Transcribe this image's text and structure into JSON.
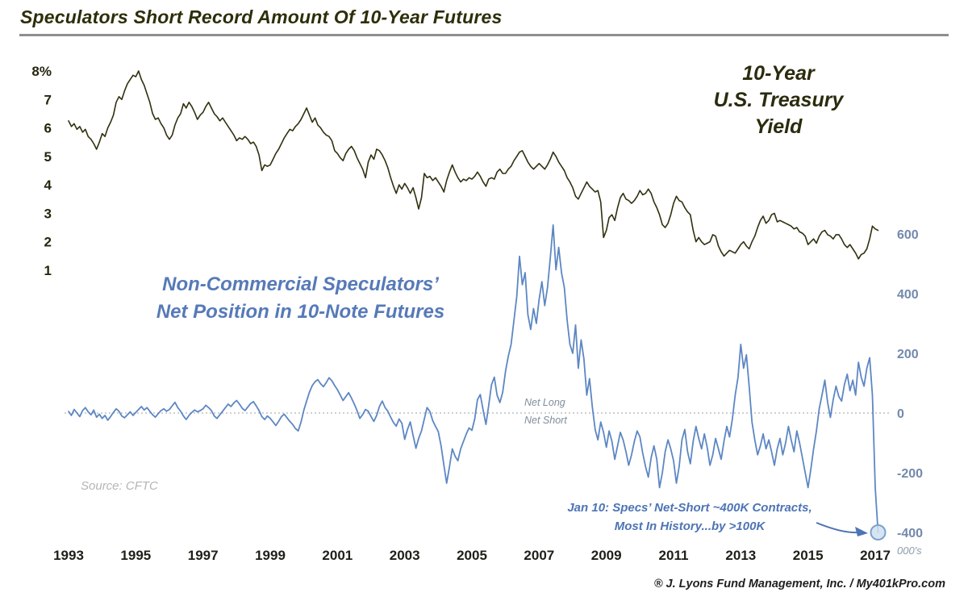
{
  "title": "Speculators Short Record Amount Of 10-Year Futures",
  "footer": "® J. Lyons Fund Management, Inc. / My401kPro.com",
  "colors": {
    "yield_line": "#30300f",
    "net_line": "#5d87c3",
    "blue_text": "#4d74b5",
    "dark_text": "#2e2e0a",
    "axis_right": "#7289ac",
    "gray_rule": "#8f8f8f",
    "marker_fill": "#cfe0ef",
    "marker_stroke": "#7aa3cc"
  },
  "chart_data": {
    "type": "line",
    "title": "Speculators Short Record Amount Of 10-Year Futures",
    "xlabel": "",
    "grid": "zero-line-only",
    "x_axis": {
      "range": [
        1993,
        2017.12
      ],
      "ticks": [
        "1993",
        "1995",
        "1997",
        "1999",
        "2001",
        "2003",
        "2005",
        "2007",
        "2009",
        "2011",
        "2013",
        "2015",
        "2017"
      ]
    },
    "left_axis": {
      "name": "10-Year U.S. Treasury Yield (%)",
      "range": [
        1,
        8
      ],
      "ticks": [
        "8%",
        "7",
        "6",
        "5",
        "4",
        "3",
        "2",
        "1"
      ],
      "tick_values": [
        8,
        7,
        6,
        5,
        4,
        3,
        2,
        1
      ]
    },
    "right_axis": {
      "name": "Net Position (thousands of contracts)",
      "range": [
        -400,
        600
      ],
      "ticks": [
        "600",
        "400",
        "200",
        "0",
        "-200",
        "-400"
      ],
      "tick_values": [
        600,
        400,
        200,
        0,
        -200,
        -400
      ],
      "unit": "000's"
    },
    "annotations": {
      "yield_label": "10-Year\nU.S. Treasury\nYield",
      "net_label": "Non-Commercial Speculators’\nNet Position in 10-Note Futures",
      "net_long": "Net Long",
      "net_short": "Net Short",
      "source": "Source: CFTC",
      "callout": "Jan 10: Specs’ Net-Short ~400K Contracts,\nMost In History...by >100K"
    },
    "series": [
      {
        "id": "treasury-yield",
        "name": "10-Year U.S. Treasury Yield",
        "axis": "left",
        "color": "#30300f",
        "width": 1.6,
        "start": 1993.0,
        "step": 0.083333,
        "values": [
          6.25,
          6.05,
          6.15,
          5.95,
          6.05,
          5.85,
          5.95,
          5.7,
          5.6,
          5.45,
          5.25,
          5.5,
          5.8,
          5.7,
          6.0,
          6.2,
          6.45,
          6.9,
          7.1,
          7.0,
          7.3,
          7.55,
          7.7,
          7.85,
          7.8,
          8.0,
          7.7,
          7.5,
          7.2,
          6.9,
          6.5,
          6.3,
          6.35,
          6.15,
          6.0,
          5.75,
          5.6,
          5.75,
          6.1,
          6.35,
          6.5,
          6.85,
          6.7,
          6.9,
          6.75,
          6.55,
          6.3,
          6.45,
          6.55,
          6.75,
          6.9,
          6.7,
          6.5,
          6.4,
          6.25,
          6.35,
          6.2,
          6.05,
          5.9,
          5.75,
          5.55,
          5.65,
          5.6,
          5.7,
          5.6,
          5.45,
          5.5,
          5.35,
          5.05,
          4.5,
          4.7,
          4.65,
          4.7,
          4.9,
          5.1,
          5.25,
          5.45,
          5.65,
          5.8,
          5.95,
          5.9,
          6.05,
          6.15,
          6.3,
          6.5,
          6.7,
          6.45,
          6.2,
          6.35,
          6.1,
          6.0,
          5.85,
          5.75,
          5.7,
          5.55,
          5.2,
          5.1,
          4.95,
          4.85,
          5.1,
          5.25,
          5.35,
          5.2,
          4.95,
          4.75,
          4.55,
          4.25,
          4.8,
          5.05,
          4.9,
          5.25,
          5.2,
          5.05,
          4.85,
          4.6,
          4.25,
          3.95,
          3.7,
          4.0,
          3.85,
          4.05,
          3.9,
          3.7,
          3.9,
          3.55,
          3.15,
          3.55,
          4.4,
          4.25,
          4.3,
          4.15,
          4.25,
          4.1,
          3.95,
          3.75,
          4.15,
          4.45,
          4.7,
          4.45,
          4.25,
          4.1,
          4.2,
          4.15,
          4.25,
          4.2,
          4.3,
          4.45,
          4.3,
          4.1,
          3.95,
          4.2,
          4.25,
          4.2,
          4.45,
          4.55,
          4.4,
          4.4,
          4.55,
          4.65,
          4.85,
          5.0,
          5.15,
          5.2,
          5.0,
          4.8,
          4.65,
          4.55,
          4.65,
          4.75,
          4.65,
          4.55,
          4.7,
          4.9,
          5.15,
          5.0,
          4.8,
          4.65,
          4.5,
          4.25,
          4.1,
          3.9,
          3.6,
          3.5,
          3.7,
          3.9,
          4.1,
          3.95,
          3.85,
          3.75,
          3.8,
          3.4,
          2.15,
          2.4,
          2.85,
          2.95,
          2.75,
          3.2,
          3.55,
          3.7,
          3.5,
          3.45,
          3.35,
          3.45,
          3.6,
          3.8,
          3.65,
          3.7,
          3.85,
          3.7,
          3.4,
          3.2,
          2.95,
          2.6,
          2.5,
          2.65,
          2.95,
          3.35,
          3.6,
          3.45,
          3.4,
          3.2,
          3.05,
          2.95,
          2.4,
          2.0,
          2.15,
          2.0,
          1.9,
          1.95,
          2.0,
          2.25,
          2.2,
          1.85,
          1.65,
          1.5,
          1.6,
          1.7,
          1.65,
          1.6,
          1.75,
          1.9,
          2.0,
          1.85,
          1.75,
          2.0,
          2.2,
          2.5,
          2.75,
          2.9,
          2.65,
          2.75,
          2.95,
          3.0,
          2.7,
          2.75,
          2.7,
          2.65,
          2.6,
          2.55,
          2.45,
          2.5,
          2.35,
          2.3,
          2.2,
          1.9,
          2.0,
          2.1,
          1.95,
          2.2,
          2.35,
          2.4,
          2.25,
          2.2,
          2.1,
          2.25,
          2.25,
          2.1,
          1.9,
          1.8,
          1.9,
          1.75,
          1.6,
          1.4,
          1.55,
          1.6,
          1.75,
          2.1,
          2.55,
          2.45,
          2.4
        ]
      },
      {
        "id": "net-position",
        "name": "Non-Commercial Speculators’ Net Position in 10-Note Futures",
        "axis": "right",
        "color": "#5d87c3",
        "width": 1.8,
        "start": 1993.0,
        "step": 0.083333,
        "end_marker": true,
        "end_marker_label": "Jan 10: ~ -400K contracts (record net short)",
        "values": [
          5,
          -8,
          12,
          0,
          -12,
          8,
          18,
          4,
          -6,
          10,
          -14,
          -4,
          -18,
          -8,
          -24,
          -12,
          2,
          14,
          6,
          -10,
          -16,
          -6,
          4,
          -8,
          2,
          12,
          22,
          10,
          18,
          6,
          -6,
          -14,
          -2,
          8,
          14,
          6,
          12,
          24,
          36,
          18,
          6,
          -10,
          -22,
          -8,
          2,
          10,
          4,
          8,
          14,
          26,
          18,
          8,
          -10,
          -18,
          -6,
          6,
          18,
          30,
          22,
          34,
          42,
          30,
          16,
          8,
          20,
          32,
          38,
          24,
          8,
          -12,
          -22,
          -10,
          -18,
          -30,
          -42,
          -28,
          -12,
          -4,
          -16,
          -28,
          -38,
          -52,
          -60,
          -30,
          10,
          40,
          70,
          92,
          105,
          112,
          98,
          88,
          102,
          118,
          108,
          92,
          78,
          60,
          42,
          55,
          68,
          50,
          30,
          8,
          -18,
          -5,
          12,
          6,
          -12,
          -28,
          -8,
          22,
          40,
          18,
          6,
          -14,
          -32,
          -44,
          -20,
          -34,
          -88,
          -55,
          -30,
          -75,
          -118,
          -85,
          -60,
          -20,
          18,
          5,
          -25,
          -45,
          -62,
          -110,
          -175,
          -235,
          -180,
          -120,
          -145,
          -160,
          -120,
          -95,
          -70,
          -50,
          -58,
          -20,
          45,
          62,
          10,
          -38,
          25,
          95,
          120,
          60,
          35,
          70,
          140,
          190,
          230,
          310,
          390,
          525,
          430,
          470,
          330,
          280,
          350,
          300,
          380,
          440,
          360,
          420,
          520,
          630,
          480,
          555,
          470,
          420,
          310,
          230,
          200,
          295,
          150,
          245,
          180,
          60,
          115,
          20,
          -55,
          -90,
          -30,
          -65,
          -115,
          -60,
          -95,
          -155,
          -110,
          -65,
          -90,
          -130,
          -175,
          -140,
          -95,
          -60,
          -80,
          -135,
          -180,
          -215,
          -150,
          -110,
          -155,
          -250,
          -200,
          -130,
          -90,
          -120,
          -160,
          -235,
          -180,
          -90,
          -55,
          -130,
          -170,
          -95,
          -45,
          -85,
          -120,
          -70,
          -115,
          -175,
          -140,
          -85,
          -120,
          -155,
          -95,
          -45,
          -80,
          -20,
          60,
          120,
          230,
          150,
          195,
          90,
          -30,
          -90,
          -140,
          -110,
          -70,
          -120,
          -90,
          -130,
          -175,
          -120,
          -85,
          -140,
          -100,
          -45,
          -90,
          -130,
          -60,
          -100,
          -150,
          -200,
          -250,
          -190,
          -120,
          -60,
          15,
          60,
          110,
          35,
          -15,
          45,
          90,
          55,
          40,
          95,
          130,
          75,
          110,
          60,
          170,
          120,
          90,
          150,
          185,
          60,
          -250,
          -400
        ]
      }
    ]
  }
}
